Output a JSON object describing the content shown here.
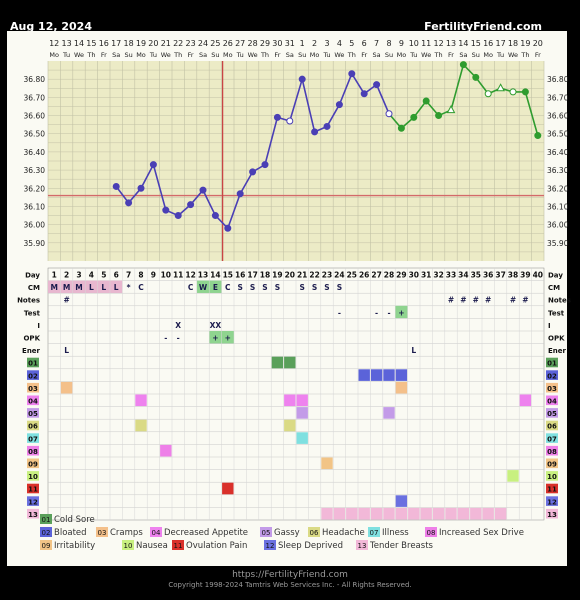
{
  "header": {
    "date": "Aug 12, 2024",
    "site": "FertilityFriend.com"
  },
  "footer": {
    "url": "https://FertilityFriend.com",
    "copyright": "Copyright 1998-2024 Tamtris Web Services Inc. - All Rights Reserved."
  },
  "colors": {
    "panel_bg": "#fafaf3",
    "chart_bg": "#ecebc6",
    "grid": "#c2c1a6",
    "line_pre": "#4a3fb5",
    "line_post": "#2f9c2f",
    "coverline": "#d36a6a",
    "ovulation_line": "#c94545"
  },
  "chart_data": {
    "type": "line",
    "title": "",
    "ylim": [
      35.8,
      36.9
    ],
    "y_ticks": [
      "35.90",
      "36.00",
      "36.10",
      "36.20",
      "36.30",
      "36.40",
      "36.50",
      "36.60",
      "36.70",
      "36.80"
    ],
    "date_numbers": [
      "12",
      "13",
      "14",
      "15",
      "16",
      "17",
      "18",
      "19",
      "20",
      "21",
      "22",
      "23",
      "24",
      "25",
      "26",
      "27",
      "28",
      "29",
      "30",
      "31",
      "1",
      "2",
      "3",
      "4",
      "5",
      "6",
      "7",
      "8",
      "9",
      "10",
      "11",
      "12",
      "13",
      "14",
      "15",
      "16",
      "17",
      "18",
      "19",
      "20"
    ],
    "weekdays": [
      "Mo",
      "Tu",
      "We",
      "Th",
      "Fr",
      "Sa",
      "Su",
      "Mo",
      "Tu",
      "We",
      "Th",
      "Fr",
      "Sa",
      "Su",
      "Mo",
      "Tu",
      "We",
      "Th",
      "Fr",
      "Sa",
      "Su",
      "Mo",
      "Tu",
      "We",
      "Th",
      "Fr",
      "Sa",
      "Su",
      "Mo",
      "Tu",
      "We",
      "Th",
      "Fr",
      "Sa",
      "Su",
      "Mo",
      "Tu",
      "We",
      "Th",
      "Fr"
    ],
    "cycle_days": [
      "1",
      "2",
      "3",
      "4",
      "5",
      "6",
      "7",
      "8",
      "9",
      "10",
      "11",
      "12",
      "13",
      "14",
      "15",
      "16",
      "17",
      "18",
      "19",
      "20",
      "21",
      "22",
      "23",
      "24",
      "25",
      "26",
      "27",
      "28",
      "29",
      "30",
      "31",
      "32",
      "33",
      "34",
      "35",
      "36",
      "37",
      "38",
      "39",
      "40"
    ],
    "series": [
      {
        "values": [
          null,
          null,
          null,
          null,
          null,
          36.21,
          36.12,
          36.2,
          36.33,
          36.08,
          36.05,
          36.11,
          36.19,
          36.05,
          35.98,
          36.17,
          36.29,
          36.33,
          36.59,
          36.57,
          36.8,
          36.51,
          36.54,
          36.66,
          36.83,
          36.72,
          36.77,
          36.61,
          36.53,
          36.59,
          36.68,
          36.6,
          36.63,
          36.88,
          36.81,
          36.72,
          36.75,
          36.73,
          36.73,
          36.49
        ]
      }
    ],
    "pre_ovulation_last_day": 28,
    "open_markers": [
      20,
      28,
      33,
      36,
      38
    ],
    "coverline": 36.16,
    "ovulation_day": 15,
    "rows": [
      {
        "label": "CM",
        "cells": {
          "1": "M",
          "2": "M",
          "3": "M",
          "4": "L",
          "5": "L",
          "6": "L",
          "7": "*",
          "8": "C",
          "12": "C",
          "13": "W",
          "14": "E",
          "15": "C",
          "16": "S",
          "17": "S",
          "18": "S",
          "19": "S",
          "21": "S",
          "22": "S",
          "23": "S",
          "24": "S"
        },
        "pink_days": [
          1,
          2,
          3,
          4,
          5,
          6
        ],
        "green_days": [
          13,
          14
        ]
      },
      {
        "label": "Notes",
        "cells": {
          "2": "#",
          "33": "#",
          "34": "#",
          "35": "#",
          "36": "#",
          "38": "#",
          "39": "#"
        }
      },
      {
        "label": "Test",
        "cells": {
          "24": "-",
          "27": "-",
          "28": "-",
          "29": "+"
        },
        "green_days": [
          29
        ]
      },
      {
        "label": "I",
        "cells": {
          "11": "X",
          "14": "XX"
        }
      },
      {
        "label": "OPK",
        "cells": {
          "10": "-",
          "11": "-",
          "14": "+",
          "15": "+"
        },
        "green_days": [
          14,
          15
        ]
      },
      {
        "label": "Ener",
        "cells": {
          "2": "L",
          "30": "L"
        }
      },
      {
        "label": "01",
        "color": "#5aa05a",
        "days": [
          19,
          20
        ]
      },
      {
        "label": "02",
        "color": "#5b63d9",
        "days": [
          26,
          27,
          28,
          29
        ]
      },
      {
        "label": "03",
        "color": "#f4c08a",
        "days": [
          2,
          29
        ]
      },
      {
        "label": "04",
        "color": "#ee82ee",
        "days": [
          8,
          20,
          21,
          39
        ]
      },
      {
        "label": "05",
        "color": "#c39be8",
        "days": [
          21,
          28
        ]
      },
      {
        "label": "06",
        "color": "#dada85",
        "days": [
          8,
          20
        ]
      },
      {
        "label": "07",
        "color": "#7fe0e0",
        "days": [
          21
        ]
      },
      {
        "label": "08",
        "color": "#ee80e8",
        "days": [
          10
        ]
      },
      {
        "label": "09",
        "color": "#f2c486",
        "days": [
          23
        ]
      },
      {
        "label": "10",
        "color": "#c8f080",
        "days": [
          38
        ]
      },
      {
        "label": "11",
        "color": "#d9302a",
        "days": [
          15
        ]
      },
      {
        "label": "12",
        "color": "#6a70e0",
        "days": [
          29
        ]
      },
      {
        "label": "13",
        "color": "#f2b8d8",
        "days": [
          23,
          24,
          25,
          26,
          27,
          28,
          29,
          30,
          31,
          32,
          33,
          34,
          35,
          36,
          37
        ]
      }
    ],
    "legend": [
      {
        "code": "01",
        "label": "Cold Sore",
        "color": "#5aa05a"
      },
      {
        "code": "02",
        "label": "Bloated",
        "color": "#5b63d9"
      },
      {
        "code": "03",
        "label": "Cramps",
        "color": "#f4c08a"
      },
      {
        "code": "04",
        "label": "Decreased Appetite",
        "color": "#ee82ee"
      },
      {
        "code": "05",
        "label": "Gassy",
        "color": "#c39be8"
      },
      {
        "code": "06",
        "label": "Headache",
        "color": "#dada85"
      },
      {
        "code": "07",
        "label": "Illness",
        "color": "#7fe0e0"
      },
      {
        "code": "08",
        "label": "Increased Sex Drive",
        "color": "#ee80e8"
      },
      {
        "code": "09",
        "label": "Irritability",
        "color": "#f2c486"
      },
      {
        "code": "10",
        "label": "Nausea",
        "color": "#c8f080"
      },
      {
        "code": "11",
        "label": "Ovulation Pain",
        "color": "#d9302a"
      },
      {
        "code": "12",
        "label": "Sleep Deprived",
        "color": "#6a70e0"
      },
      {
        "code": "13",
        "label": "Tender Breasts",
        "color": "#f2b8d8"
      }
    ]
  }
}
